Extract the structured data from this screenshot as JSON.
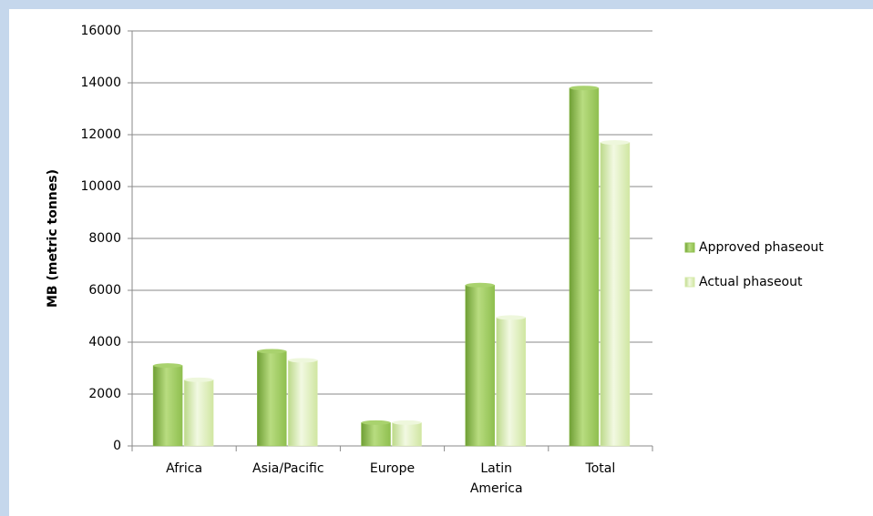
{
  "chart_data": {
    "type": "bar",
    "y_label": "MB (metric tonnes)",
    "categories": [
      "Africa",
      "Asia/Pacific",
      "Europe",
      "Latin America",
      "Total"
    ],
    "series": [
      {
        "name": "Approved phaseout",
        "color": "#8fbf4f",
        "values": [
          3100,
          3650,
          900,
          6200,
          13800
        ]
      },
      {
        "name": "Actual phaseout",
        "color": "#d6eaa8",
        "values": [
          2550,
          3300,
          900,
          4950,
          11700
        ]
      }
    ],
    "ylim": [
      0,
      16000
    ],
    "yticks": [
      0,
      2000,
      4000,
      6000,
      8000,
      10000,
      12000,
      14000,
      16000
    ],
    "grid": true,
    "legend": "right"
  }
}
